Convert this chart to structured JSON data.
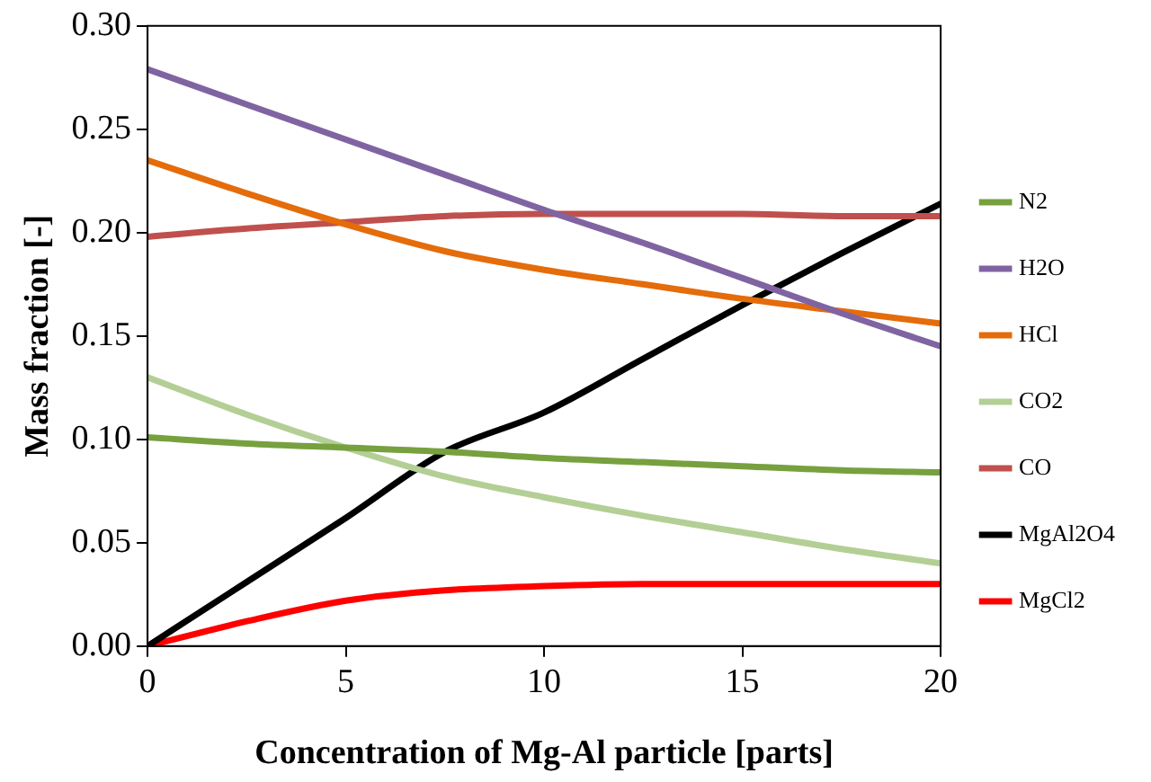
{
  "chart_data": {
    "type": "line",
    "xlabel": "Concentration of Mg-Al particle [parts]",
    "ylabel": "Mass fraction [-]",
    "x": [
      0,
      2.5,
      5,
      7.5,
      10,
      12.5,
      15,
      17.5,
      20
    ],
    "xlim": [
      0,
      20
    ],
    "xticks": [
      0,
      5,
      10,
      15,
      20
    ],
    "ylim": [
      0,
      0.3
    ],
    "yticks": [
      {
        "value": 0,
        "label": "0.00"
      },
      {
        "value": 0.05,
        "label": "0.05"
      },
      {
        "value": 0.1,
        "label": "0.10"
      },
      {
        "value": 0.15,
        "label": "0.15"
      },
      {
        "value": 0.2,
        "label": "0.20"
      },
      {
        "value": 0.25,
        "label": "0.25"
      },
      {
        "value": 0.3,
        "label": "0.30"
      }
    ],
    "grid": false,
    "legend": "right",
    "marker": "none",
    "line_style": "solid",
    "series": [
      {
        "name": "N2",
        "color": "#77a03f",
        "values": [
          0.101,
          0.098,
          0.096,
          0.094,
          0.091,
          0.089,
          0.087,
          0.085,
          0.084
        ]
      },
      {
        "name": "H2O",
        "color": "#8064a2",
        "values": [
          0.279,
          0.262,
          0.245,
          0.228,
          0.211,
          0.195,
          0.178,
          0.161,
          0.145
        ]
      },
      {
        "name": "HCl",
        "color": "#e46c0a",
        "values": [
          0.235,
          0.219,
          0.204,
          0.191,
          0.182,
          0.175,
          0.168,
          0.162,
          0.156
        ]
      },
      {
        "name": "CO2",
        "color": "#b3cf95",
        "values": [
          0.13,
          0.112,
          0.096,
          0.082,
          0.072,
          0.063,
          0.055,
          0.047,
          0.04
        ]
      },
      {
        "name": "CO",
        "color": "#c0504d",
        "values": [
          0.198,
          0.202,
          0.205,
          0.208,
          0.209,
          0.209,
          0.209,
          0.208,
          0.208
        ]
      },
      {
        "name": "MgAl2O4",
        "color": "#000000",
        "values": [
          0,
          0.031,
          0.062,
          0.094,
          0.113,
          0.139,
          0.165,
          0.19,
          0.214
        ]
      },
      {
        "name": "MgCl2",
        "color": "#ff0000",
        "values": [
          0,
          0.012,
          0.022,
          0.027,
          0.029,
          0.03,
          0.03,
          0.03,
          0.03
        ]
      }
    ]
  }
}
